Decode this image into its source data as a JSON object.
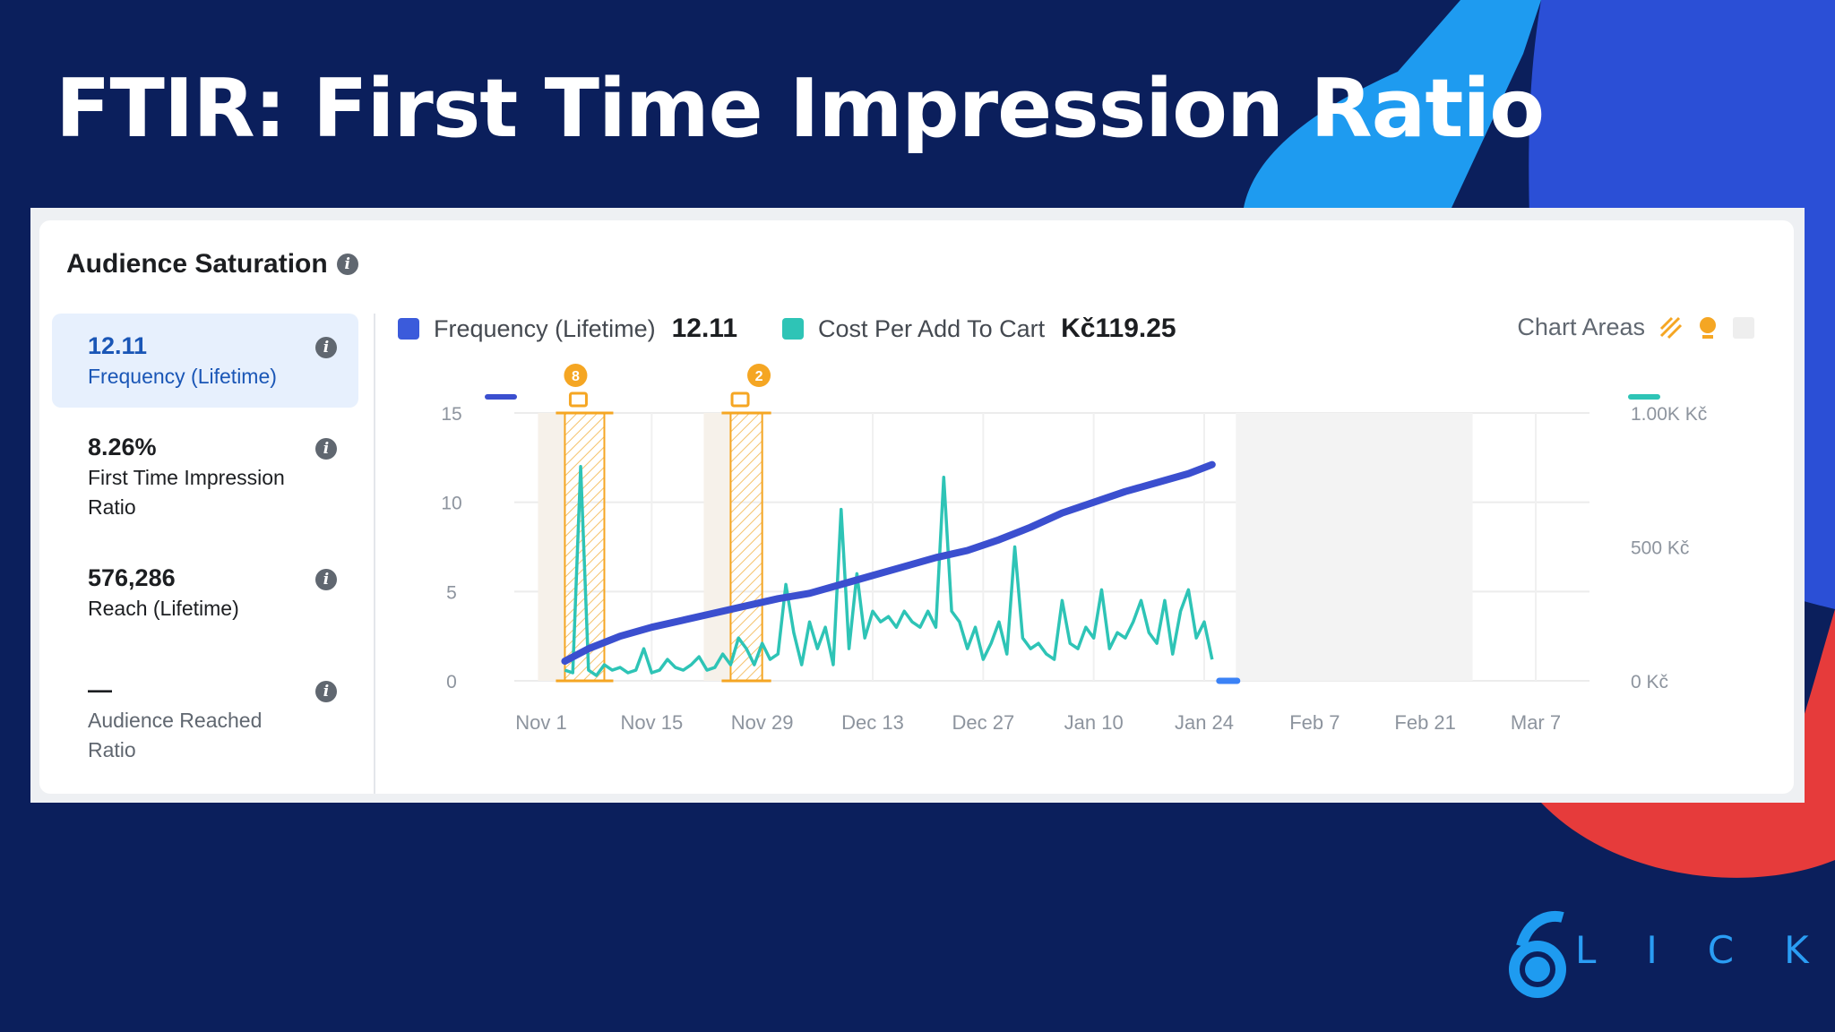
{
  "slide": {
    "title": "FTIR: First Time Impression Ratio"
  },
  "colors": {
    "background": "#0b1f5c",
    "frequency": "#3b4fcf",
    "cost": "#2ec4b6",
    "highlight": "#f5a623",
    "active_metric": "#1a56b6"
  },
  "card": {
    "title": "Audience Saturation",
    "info_icon": "info-icon"
  },
  "metrics": [
    {
      "value": "12.11",
      "label": "Frequency (Lifetime)",
      "active": true
    },
    {
      "value": "8.26%",
      "label": "First Time Impression Ratio",
      "active": false
    },
    {
      "value": "576,286",
      "label": "Reach (Lifetime)",
      "active": false
    },
    {
      "value": "—",
      "label": "Audience Reached Ratio",
      "active": false
    }
  ],
  "legend": {
    "frequency_label": "Frequency (Lifetime)",
    "frequency_value": "12.11",
    "cost_label": "Cost Per Add To Cart",
    "cost_value": "Kč119.25",
    "chart_areas_label": "Chart Areas"
  },
  "chart_data": {
    "type": "line",
    "x_tick_labels": [
      "Nov 1",
      "Nov 15",
      "Nov 29",
      "Dec 13",
      "Dec 27",
      "Jan 10",
      "Jan 24",
      "Feb 7",
      "Feb 21",
      "Mar 7"
    ],
    "y_left_ticks": [
      "15",
      "10",
      "5",
      "0"
    ],
    "y_left_range": [
      0,
      15
    ],
    "y_right_ticks": [
      "1.00K Kč",
      "500 Kč",
      "0 Kč"
    ],
    "y_right_range": [
      0,
      1000
    ],
    "grid": true,
    "annotations": [
      {
        "badge": "8",
        "from_day": 3,
        "to_day": 8
      },
      {
        "badge": "2",
        "from_day": 24,
        "to_day": 28
      }
    ],
    "shaded_range_days": [
      88,
      118
    ],
    "series": [
      {
        "name": "Frequency (Lifetime)",
        "axis": "left",
        "days": [
          3,
          6,
          10,
          14,
          18,
          22,
          26,
          30,
          34,
          38,
          42,
          46,
          50,
          54,
          58,
          62,
          66,
          70,
          74,
          78,
          82,
          85
        ],
        "values": [
          1.1,
          1.8,
          2.5,
          3.0,
          3.4,
          3.8,
          4.2,
          4.6,
          4.9,
          5.4,
          5.9,
          6.4,
          6.9,
          7.3,
          7.9,
          8.6,
          9.4,
          10.0,
          10.6,
          11.1,
          11.6,
          12.11
        ]
      },
      {
        "name": "Cost Per Add To Cart",
        "axis": "right",
        "days": [
          3,
          4,
          5,
          6,
          7,
          8,
          9,
          10,
          11,
          12,
          13,
          14,
          15,
          16,
          17,
          18,
          19,
          20,
          21,
          22,
          23,
          24,
          25,
          26,
          27,
          28,
          29,
          30,
          31,
          32,
          33,
          34,
          35,
          36,
          37,
          38,
          39,
          40,
          41,
          42,
          43,
          44,
          45,
          46,
          47,
          48,
          49,
          50,
          51,
          52,
          53,
          54,
          55,
          56,
          57,
          58,
          59,
          60,
          61,
          62,
          63,
          64,
          65,
          66,
          67,
          68,
          69,
          70,
          71,
          72,
          73,
          74,
          75,
          76,
          77,
          78,
          79,
          80,
          81,
          82,
          83,
          84,
          85
        ],
        "values": [
          40,
          30,
          800,
          40,
          20,
          60,
          40,
          50,
          30,
          40,
          120,
          30,
          40,
          80,
          50,
          40,
          60,
          90,
          40,
          50,
          100,
          60,
          160,
          120,
          60,
          140,
          80,
          100,
          360,
          180,
          60,
          220,
          120,
          200,
          60,
          640,
          120,
          400,
          160,
          260,
          220,
          240,
          200,
          260,
          220,
          200,
          260,
          200,
          760,
          260,
          220,
          120,
          200,
          80,
          140,
          220,
          100,
          500,
          160,
          120,
          140,
          100,
          80,
          300,
          140,
          120,
          200,
          160,
          340,
          120,
          180,
          160,
          220,
          300,
          180,
          140,
          300,
          100,
          260,
          340,
          160,
          220,
          80
        ]
      }
    ]
  }
}
